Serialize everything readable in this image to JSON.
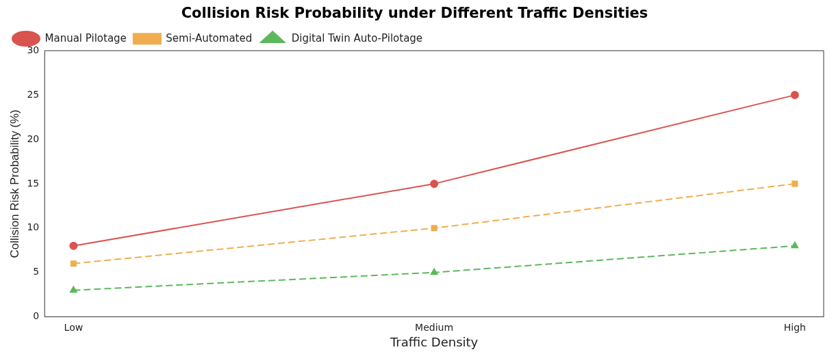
{
  "chart_data": {
    "type": "line",
    "title": "Collision Risk Probability under Different Traffic Densities",
    "xlabel": "Traffic Density",
    "ylabel": "Collision Risk Probability (%)",
    "categories": [
      "Low",
      "Medium",
      "High"
    ],
    "series": [
      {
        "name": "Manual Pilotage",
        "color": "#d9534f",
        "values": [
          8,
          15,
          25
        ],
        "marker": "circle",
        "line_style": "solid"
      },
      {
        "name": "Semi-Automated",
        "color": "#f0ad4e",
        "values": [
          6,
          10,
          15
        ],
        "marker": "square",
        "line_style": "dashed"
      },
      {
        "name": "Digital Twin Auto-Pilotage",
        "color": "#5cb85c",
        "values": [
          3,
          5,
          8
        ],
        "marker": "triangle",
        "line_style": "dashed"
      }
    ],
    "ylim": [
      0,
      30
    ],
    "yticks": [
      0,
      5,
      10,
      15,
      20,
      25,
      30
    ],
    "grid": false,
    "legend": "top left"
  }
}
